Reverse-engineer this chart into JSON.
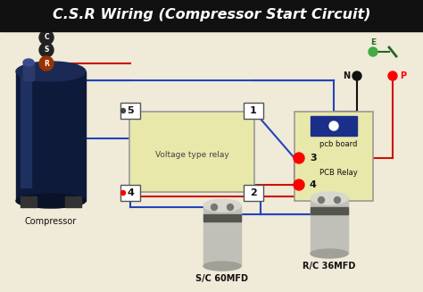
{
  "title": "C.S.R Wiring (Compressor Start Circuit)",
  "title_color": "#ffffff",
  "title_bg": "#111111",
  "bg_color": "#f0ead8",
  "relay_box_color": "#e8e8aa",
  "relay_box_border": "#999999",
  "pcb_box_color": "#e8e8aa",
  "pcb_box_border": "#999999",
  "wire_blue": "#2244bb",
  "wire_red": "#cc1100",
  "wire_black": "#111111",
  "wire_green": "#226622",
  "compressor_label": "Compressor",
  "relay_label": "Voltage type relay",
  "pcb_label": "pcb board",
  "pcb_relay_label": "PCB Relay",
  "sc_label": "S/C 60MFD",
  "rc_label": "R/C 36MFD",
  "terminal_C": "C",
  "terminal_S": "S",
  "terminal_R": "R",
  "node_N": "N",
  "node_P": "P",
  "node_E": "E"
}
